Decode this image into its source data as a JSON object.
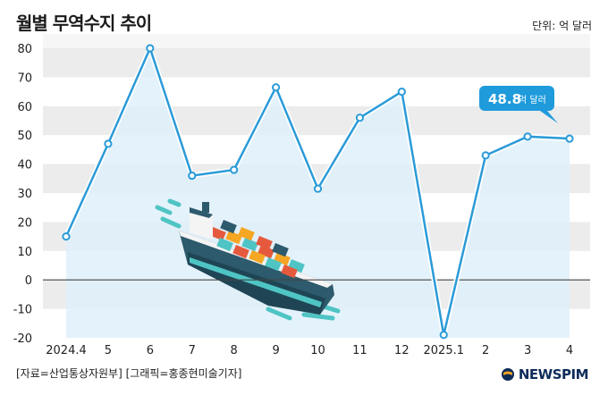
{
  "header": {
    "title": "월별 무역수지 추이",
    "unit": "단위: 억 달러"
  },
  "footer": {
    "source": "[자료=산업통상자원부] [그래픽=홍종현미술기자]",
    "logo_text": "NEWSPIM"
  },
  "colors": {
    "line": "#2b9bd8",
    "area": "#dff0fa",
    "band": "#ececec",
    "zero_line": "#444444",
    "callout": "#1f9bdc"
  },
  "chart_data": {
    "type": "line",
    "title": "월별 무역수지 추이",
    "unit": "억 달러",
    "categories": [
      "2024.4",
      "5",
      "6",
      "7",
      "8",
      "9",
      "10",
      "11",
      "12",
      "2025.1",
      "2",
      "3",
      "4"
    ],
    "series": [
      {
        "values": [
          15,
          47,
          80,
          36,
          38,
          66.5,
          31.5,
          56,
          65,
          -19,
          43,
          49.5,
          48.8
        ]
      }
    ],
    "ylim": [
      -20,
      80
    ],
    "yticks": [
      80,
      70,
      60,
      50,
      40,
      30,
      20,
      10,
      0,
      -10,
      -20
    ],
    "grid": "alternating horizontal bands",
    "annotation": {
      "index": 12,
      "value": "48.8",
      "unit": "억 달러"
    }
  }
}
